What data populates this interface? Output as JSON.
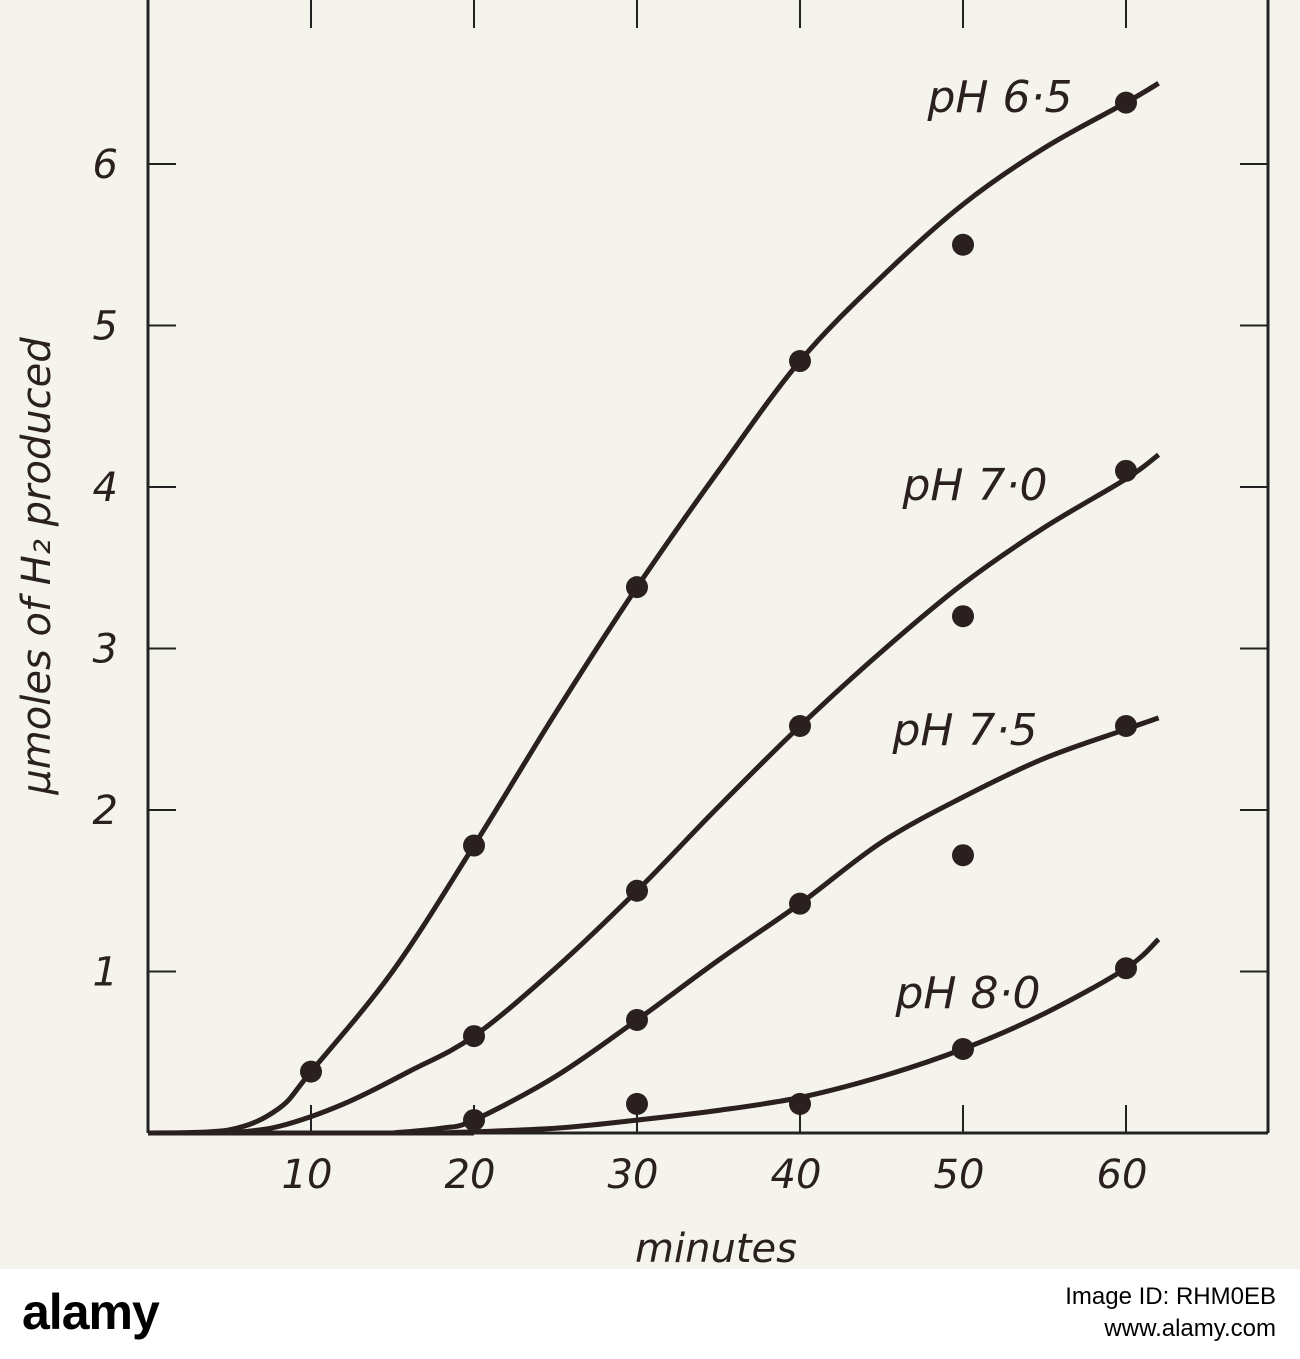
{
  "chart_data": {
    "type": "line",
    "title": "",
    "xlabel": "minutes",
    "ylabel": "μmoles of H₂ produced",
    "xlim": [
      0,
      68
    ],
    "ylim": [
      0,
      7
    ],
    "x_ticks": [
      10,
      20,
      30,
      40,
      50,
      60
    ],
    "y_ticks": [
      1,
      2,
      3,
      4,
      5,
      6
    ],
    "x_tick_labels": [
      "10",
      "20",
      "30",
      "40",
      "50",
      "60"
    ],
    "y_tick_labels": [
      "1",
      "2",
      "3",
      "4",
      "5",
      "6"
    ],
    "grid": false,
    "legend": "none",
    "series": [
      {
        "name": "pH 6·5",
        "points": [
          [
            10,
            0.38
          ],
          [
            20,
            1.78
          ],
          [
            30,
            3.38
          ],
          [
            40,
            4.78
          ],
          [
            50,
            5.5
          ],
          [
            60,
            6.38
          ]
        ],
        "curve": [
          [
            0,
            0
          ],
          [
            5,
            0.02
          ],
          [
            8,
            0.15
          ],
          [
            10,
            0.38
          ],
          [
            15,
            1.0
          ],
          [
            20,
            1.78
          ],
          [
            25,
            2.6
          ],
          [
            30,
            3.38
          ],
          [
            35,
            4.1
          ],
          [
            40,
            4.78
          ],
          [
            45,
            5.3
          ],
          [
            50,
            5.75
          ],
          [
            55,
            6.1
          ],
          [
            60,
            6.38
          ],
          [
            62,
            6.5
          ]
        ]
      },
      {
        "name": "pH 7·0",
        "points": [
          [
            20,
            0.6
          ],
          [
            30,
            1.5
          ],
          [
            40,
            2.52
          ],
          [
            50,
            3.2
          ],
          [
            60,
            4.1
          ]
        ],
        "curve": [
          [
            5,
            0
          ],
          [
            8,
            0.04
          ],
          [
            12,
            0.18
          ],
          [
            16,
            0.38
          ],
          [
            20,
            0.6
          ],
          [
            25,
            1.02
          ],
          [
            30,
            1.5
          ],
          [
            35,
            2.02
          ],
          [
            40,
            2.52
          ],
          [
            45,
            2.98
          ],
          [
            50,
            3.4
          ],
          [
            55,
            3.75
          ],
          [
            60,
            4.05
          ],
          [
            62,
            4.2
          ]
        ]
      },
      {
        "name": "pH 7·5",
        "points": [
          [
            20,
            0.08
          ],
          [
            30,
            0.7
          ],
          [
            40,
            1.42
          ],
          [
            50,
            1.72
          ],
          [
            60,
            2.52
          ]
        ],
        "curve": [
          [
            15,
            0
          ],
          [
            18,
            0.03
          ],
          [
            20,
            0.08
          ],
          [
            25,
            0.35
          ],
          [
            30,
            0.7
          ],
          [
            35,
            1.07
          ],
          [
            40,
            1.42
          ],
          [
            45,
            1.8
          ],
          [
            50,
            2.08
          ],
          [
            55,
            2.32
          ],
          [
            60,
            2.5
          ],
          [
            62,
            2.57
          ]
        ]
      },
      {
        "name": "pH 8·0",
        "points": [
          [
            30,
            0.18
          ],
          [
            40,
            0.18
          ],
          [
            50,
            0.52
          ],
          [
            60,
            1.02
          ]
        ],
        "curve": [
          [
            18,
            0
          ],
          [
            25,
            0.03
          ],
          [
            30,
            0.08
          ],
          [
            35,
            0.14
          ],
          [
            40,
            0.22
          ],
          [
            45,
            0.35
          ],
          [
            50,
            0.52
          ],
          [
            55,
            0.74
          ],
          [
            60,
            1.02
          ],
          [
            62,
            1.2
          ]
        ]
      }
    ],
    "annotations": [
      "pH 6·5",
      "pH 7·0",
      "pH 7·5",
      "pH 8·0"
    ]
  },
  "watermark": {
    "brand": "alamy",
    "image_id": "Image ID: RHM0EB",
    "site": "www.alamy.com"
  }
}
